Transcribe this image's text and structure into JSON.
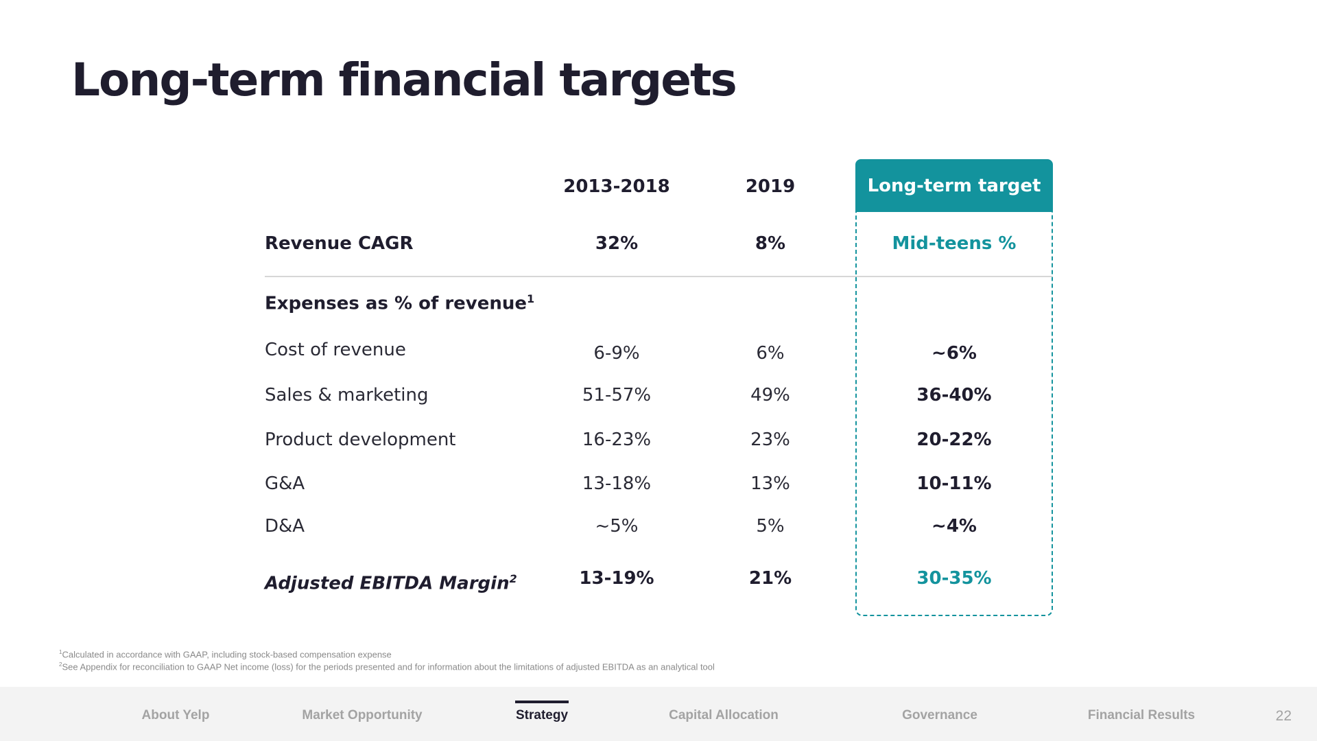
{
  "title": "Long-term financial targets",
  "columns": {
    "period1": "2013-2018",
    "period2": "2019",
    "target": "Long-term target"
  },
  "rows": {
    "revenue": {
      "label": "Revenue CAGR",
      "v1": "32%",
      "v2": "8%",
      "target": "Mid-teens %"
    },
    "expenses_header": {
      "label": "Expenses as % of revenue",
      "sup": "1"
    },
    "cost": {
      "label": "Cost of revenue",
      "v1": "6-9%",
      "v2": "6%",
      "target": "~6%"
    },
    "sales": {
      "label": "Sales & marketing",
      "v1": "51-57%",
      "v2": "49%",
      "target": "36-40%"
    },
    "product": {
      "label": "Product development",
      "v1": "16-23%",
      "v2": "23%",
      "target": "20-22%"
    },
    "ga": {
      "label": "G&A",
      "v1": "13-18%",
      "v2": "13%",
      "target": "10-11%"
    },
    "da": {
      "label": "D&A",
      "v1": "~5%",
      "v2": "5%",
      "target": "~4%"
    },
    "ebitda": {
      "label": "Adjusted EBITDA Margin",
      "sup": "2",
      "v1": "13-19%",
      "v2": "21%",
      "target": "30-35%"
    }
  },
  "footnotes": {
    "f1_mark": "1",
    "f1": "Calculated in accordance with GAAP, including stock-based compensation expense",
    "f2_mark": "2",
    "f2": "See Appendix for reconciliation to GAAP Net income (loss) for the periods presented and for information about the limitations of adjusted EBITDA as an analytical tool"
  },
  "nav": {
    "items": [
      "About Yelp",
      "Market Opportunity",
      "Strategy",
      "Capital Allocation",
      "Governance",
      "Financial Results"
    ],
    "active": "Strategy",
    "page_number": "22"
  },
  "colors": {
    "accent": "#13939d",
    "title": "#1f1d2e",
    "footer_bg": "#f3f3f3"
  }
}
